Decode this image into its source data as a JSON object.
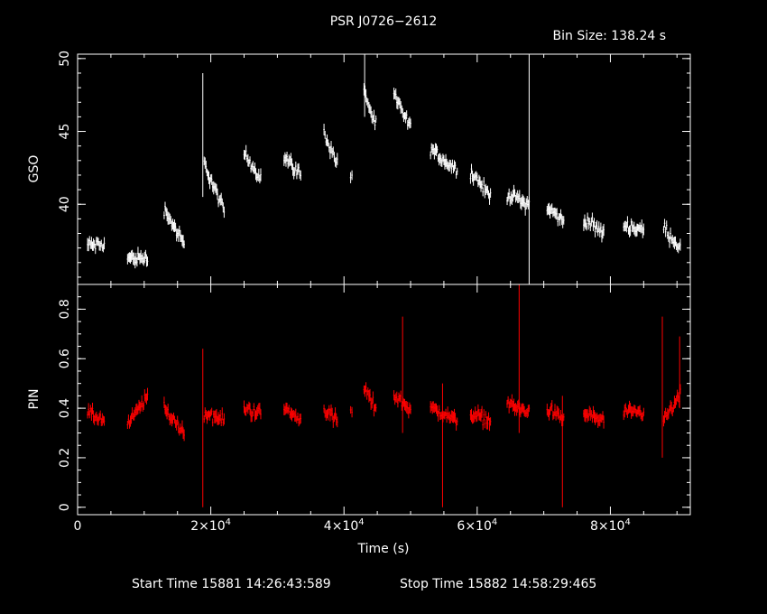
{
  "title": "PSR J0726−2612",
  "bin_size": "Bin Size: 138.24 s",
  "footer": {
    "start_label": "Start Time 15881 14:26:43:589",
    "stop_label": "Stop Time 15882 14:58:29:465"
  },
  "colors": {
    "background": "#000000",
    "gso": "#ffffff",
    "pin": "#ff0000",
    "axes": "#ffffff"
  },
  "chart_data": [
    {
      "type": "scatter",
      "panel": "top",
      "ylabel": "GSO",
      "xlim": [
        0,
        92000
      ],
      "ylim": [
        34.5,
        50.3
      ],
      "yticks": [
        40,
        45,
        50
      ],
      "ytick_labels": [
        "40",
        "45",
        "50"
      ],
      "grid": false,
      "series": [
        {
          "error_bars": true,
          "segments": [
            {
              "x0": 1500,
              "x1": 4000,
              "y0": 37.2,
              "y1": 37.2
            },
            {
              "x0": 7500,
              "x1": 10500,
              "y0": 36.3,
              "y1": 36.3
            },
            {
              "x0": 13000,
              "x1": 16000,
              "y0": 39.7,
              "y1": 37.2
            },
            {
              "x0": 19000,
              "x1": 22000,
              "y0": 42.8,
              "y1": 39.5
            },
            {
              "x0": 25000,
              "x1": 27500,
              "y0": 43.5,
              "y1": 41.8
            },
            {
              "x0": 31000,
              "x1": 33500,
              "y0": 43.3,
              "y1": 42.0
            },
            {
              "x0": 37000,
              "x1": 39000,
              "y0": 44.9,
              "y1": 42.8
            },
            {
              "x0": 41000,
              "x1": 41200,
              "y0": 42.0,
              "y1": 42.0
            },
            {
              "x0": 43000,
              "x1": 44800,
              "y0": 47.8,
              "y1": 45.3
            },
            {
              "x0": 47500,
              "x1": 50000,
              "y0": 47.5,
              "y1": 45.2
            },
            {
              "x0": 53000,
              "x1": 57000,
              "y0": 43.8,
              "y1": 42.3
            },
            {
              "x0": 59000,
              "x1": 62000,
              "y0": 42.3,
              "y1": 40.5
            },
            {
              "x0": 64500,
              "x1": 67800,
              "y0": 40.7,
              "y1": 40.0
            },
            {
              "x0": 70500,
              "x1": 73000,
              "y0": 39.8,
              "y1": 38.8
            },
            {
              "x0": 76000,
              "x1": 79000,
              "y0": 39.0,
              "y1": 38.0
            },
            {
              "x0": 82000,
              "x1": 85000,
              "y0": 38.6,
              "y1": 38.2
            },
            {
              "x0": 88000,
              "x1": 90500,
              "y0": 38.4,
              "y1": 37.0
            }
          ],
          "spikes": [
            {
              "x": 18800,
              "y_low": 40.5,
              "y_high": 49.0
            },
            {
              "x": 43100,
              "y_low": 46.0,
              "y_high": 50.3
            },
            {
              "x": 67800,
              "y_low": 34.5,
              "y_high": 50.3
            }
          ]
        }
      ]
    },
    {
      "type": "scatter",
      "panel": "bottom",
      "ylabel": "PIN",
      "xlabel": "Time (s)",
      "xlim": [
        0,
        92000
      ],
      "ylim": [
        -0.03,
        0.9
      ],
      "yticks": [
        0,
        0.2,
        0.4,
        0.6,
        0.8
      ],
      "ytick_labels": [
        "0",
        "0.2",
        "0.4",
        "0.6",
        "0.8"
      ],
      "xticks": [
        0,
        20000,
        40000,
        60000,
        80000
      ],
      "xtick_labels": [
        {
          "mant": "0",
          "exp": ""
        },
        {
          "mant": "2×10",
          "exp": "4"
        },
        {
          "mant": "4×10",
          "exp": "4"
        },
        {
          "mant": "6×10",
          "exp": "4"
        },
        {
          "mant": "8×10",
          "exp": "4"
        }
      ],
      "grid": false,
      "series": [
        {
          "error_bars": true,
          "segments": [
            {
              "x0": 1500,
              "x1": 4000,
              "y0": 0.38,
              "y1": 0.35
            },
            {
              "x0": 7500,
              "x1": 10500,
              "y0": 0.33,
              "y1": 0.45
            },
            {
              "x0": 13000,
              "x1": 16000,
              "y0": 0.4,
              "y1": 0.3
            },
            {
              "x0": 19000,
              "x1": 22000,
              "y0": 0.38,
              "y1": 0.35
            },
            {
              "x0": 25000,
              "x1": 27500,
              "y0": 0.4,
              "y1": 0.38
            },
            {
              "x0": 31000,
              "x1": 33500,
              "y0": 0.4,
              "y1": 0.35
            },
            {
              "x0": 37000,
              "x1": 39000,
              "y0": 0.4,
              "y1": 0.35
            },
            {
              "x0": 41000,
              "x1": 41200,
              "y0": 0.38,
              "y1": 0.38
            },
            {
              "x0": 43000,
              "x1": 44800,
              "y0": 0.48,
              "y1": 0.4
            },
            {
              "x0": 47500,
              "x1": 50000,
              "y0": 0.45,
              "y1": 0.4
            },
            {
              "x0": 53000,
              "x1": 57000,
              "y0": 0.4,
              "y1": 0.35
            },
            {
              "x0": 59000,
              "x1": 62000,
              "y0": 0.38,
              "y1": 0.35
            },
            {
              "x0": 64500,
              "x1": 67800,
              "y0": 0.42,
              "y1": 0.38
            },
            {
              "x0": 70500,
              "x1": 73000,
              "y0": 0.4,
              "y1": 0.35
            },
            {
              "x0": 76000,
              "x1": 79000,
              "y0": 0.38,
              "y1": 0.35
            },
            {
              "x0": 82000,
              "x1": 85000,
              "y0": 0.38,
              "y1": 0.38
            },
            {
              "x0": 88000,
              "x1": 90500,
              "y0": 0.35,
              "y1": 0.45
            }
          ],
          "spikes": [
            {
              "x": 18800,
              "y_low": 0.0,
              "y_high": 0.64
            },
            {
              "x": 48800,
              "y_low": 0.3,
              "y_high": 0.77
            },
            {
              "x": 54800,
              "y_low": 0.0,
              "y_high": 0.5
            },
            {
              "x": 66300,
              "y_low": 0.3,
              "y_high": 0.9
            },
            {
              "x": 72800,
              "y_low": 0.0,
              "y_high": 0.45
            },
            {
              "x": 87800,
              "y_low": 0.2,
              "y_high": 0.77
            },
            {
              "x": 90400,
              "y_low": 0.4,
              "y_high": 0.69
            }
          ]
        }
      ]
    }
  ]
}
